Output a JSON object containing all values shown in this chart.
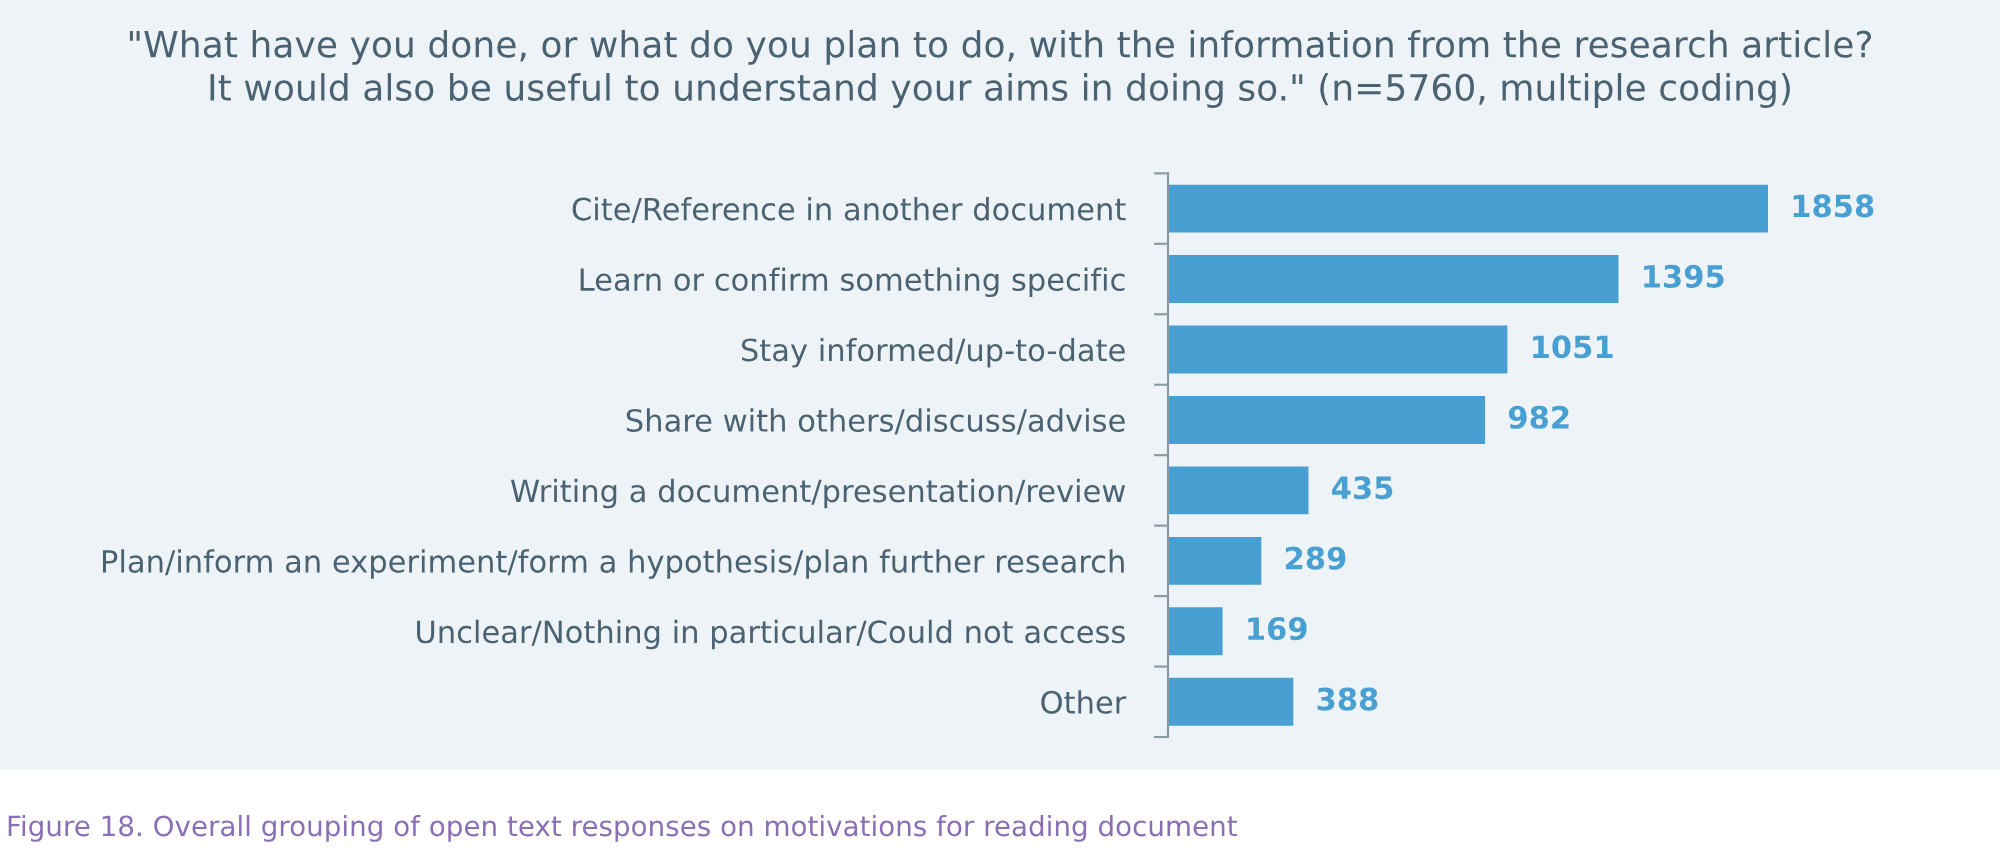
{
  "chart_data": {
    "type": "bar",
    "orientation": "horizontal",
    "title": "\"What have you done, or what do you plan to do, with the information from the research article?\nIt would also be useful to understand your aims in doing so.\" (n=5760, multiple coding)",
    "categories": [
      "Cite/Reference in another document",
      "Learn or confirm something specific",
      "Stay informed/up-to-date",
      "Share with others/discuss/advise",
      "Writing a document/presentation/review",
      "Plan/inform an experiment/form a hypothesis/plan further research",
      "Unclear/Nothing in particular/Could not access",
      "Other"
    ],
    "values": [
      1858,
      1395,
      1051,
      982,
      435,
      289,
      169,
      388
    ],
    "color": "#479fd2",
    "data_labels": true,
    "grid": false,
    "legend": false,
    "annotations": [
      "Figure 18. Overall grouping of open text responses on motivations for reading document"
    ]
  }
}
